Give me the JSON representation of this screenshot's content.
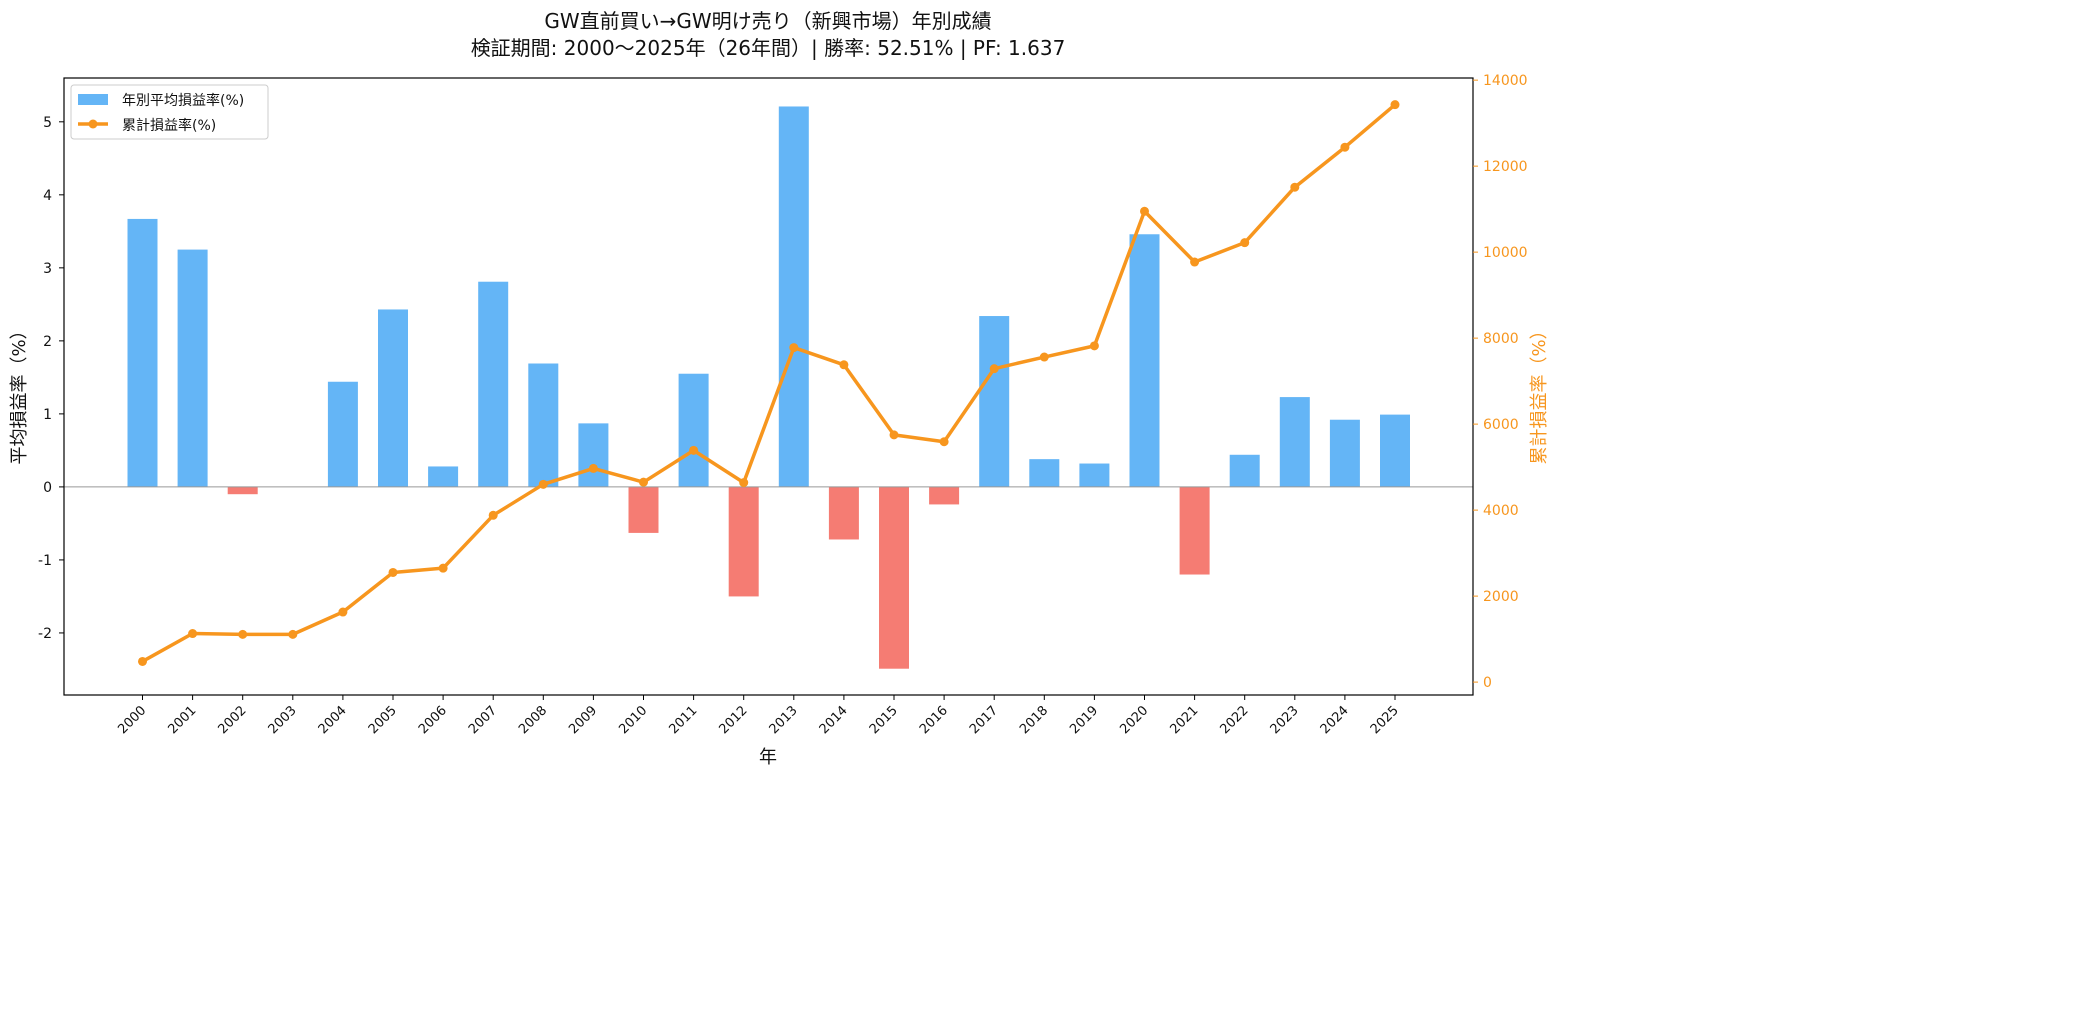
{
  "chart_data": {
    "type": "bar",
    "title": "GW直前買い→GW明け売り（新興市場）年別成績",
    "subtitle": "検証期間: 2000〜2025年（26年間）| 勝率: 52.51% | PF: 1.637",
    "xlabel": "年",
    "ylabel": "平均損益率（%）",
    "y2label": "累計損益率（%）",
    "categories": [
      "2000",
      "2001",
      "2002",
      "2003",
      "2004",
      "2005",
      "2006",
      "2007",
      "2008",
      "2009",
      "2010",
      "2011",
      "2012",
      "2013",
      "2014",
      "2015",
      "2016",
      "2017",
      "2018",
      "2019",
      "2020",
      "2021",
      "2022",
      "2023",
      "2024",
      "2025"
    ],
    "ylim": [
      -2.85,
      5.6
    ],
    "y2lim": [
      -300,
      14050
    ],
    "yticks": [
      -2,
      -1,
      0,
      1,
      2,
      3,
      4,
      5
    ],
    "y2ticks": [
      0,
      2000,
      4000,
      6000,
      8000,
      10000,
      12000,
      14000
    ],
    "grid": false,
    "legend_position": "top-left",
    "series": [
      {
        "name": "年別平均損益率(%)",
        "type": "bar",
        "axis": "left",
        "color_positive": "#64b5f6",
        "color_negative": "#f57c73",
        "values": [
          3.67,
          3.25,
          -0.1,
          0.0,
          1.44,
          2.43,
          0.28,
          2.81,
          1.69,
          0.87,
          -0.63,
          1.55,
          -1.5,
          5.21,
          -0.72,
          -2.49,
          -0.24,
          2.34,
          0.38,
          0.32,
          3.46,
          -1.2,
          0.44,
          1.23,
          0.92,
          0.99
        ]
      },
      {
        "name": "累計損益率(%)",
        "type": "line",
        "axis": "right",
        "color": "#f7961e",
        "values": [
          480,
          1130,
          1110,
          1110,
          1630,
          2550,
          2650,
          3880,
          4600,
          4970,
          4650,
          5390,
          4640,
          7780,
          7380,
          5750,
          5590,
          7290,
          7560,
          7820,
          10950,
          9770,
          10220,
          11510,
          12440,
          13430
        ]
      }
    ]
  }
}
